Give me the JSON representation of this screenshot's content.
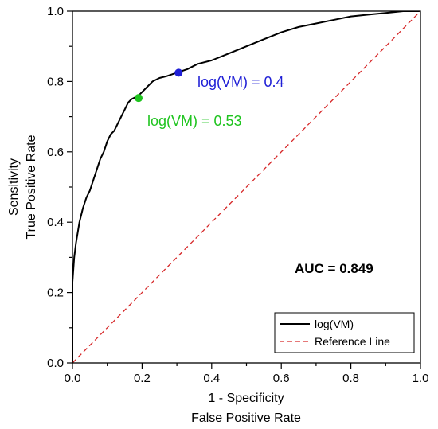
{
  "chart_data": {
    "type": "line",
    "title": "",
    "xlabel_lines": [
      "1 - Specificity",
      "False Positive Rate"
    ],
    "ylabel_lines": [
      "Sensitivity",
      "True Positive Rate"
    ],
    "xlim": [
      0,
      1
    ],
    "ylim": [
      0,
      1
    ],
    "xticks": [
      0.0,
      0.2,
      0.4,
      0.6,
      0.8,
      1.0
    ],
    "yticks": [
      0.0,
      0.2,
      0.4,
      0.6,
      0.8,
      1.0
    ],
    "xtick_labels": [
      "0.0",
      "0.2",
      "0.4",
      "0.6",
      "0.8",
      "1.0"
    ],
    "ytick_labels": [
      "0.0",
      "0.2",
      "0.4",
      "0.6",
      "0.8",
      "1.0"
    ],
    "grid": false,
    "legend_position": "bottom-right",
    "series": [
      {
        "name": "log(VM)",
        "color": "#000000",
        "style": "solid",
        "x": [
          0.0,
          0.0,
          0.005,
          0.01,
          0.015,
          0.02,
          0.03,
          0.04,
          0.05,
          0.06,
          0.07,
          0.08,
          0.09,
          0.1,
          0.11,
          0.12,
          0.13,
          0.14,
          0.15,
          0.16,
          0.17,
          0.19,
          0.21,
          0.23,
          0.25,
          0.27,
          0.3,
          0.33,
          0.36,
          0.4,
          0.45,
          0.5,
          0.55,
          0.6,
          0.65,
          0.7,
          0.75,
          0.8,
          0.85,
          0.9,
          0.95,
          1.0
        ],
        "y": [
          0.0,
          0.23,
          0.3,
          0.34,
          0.37,
          0.4,
          0.44,
          0.47,
          0.49,
          0.52,
          0.55,
          0.58,
          0.6,
          0.63,
          0.65,
          0.66,
          0.68,
          0.7,
          0.72,
          0.74,
          0.75,
          0.76,
          0.78,
          0.8,
          0.81,
          0.815,
          0.825,
          0.835,
          0.85,
          0.86,
          0.88,
          0.9,
          0.92,
          0.94,
          0.955,
          0.965,
          0.975,
          0.985,
          0.99,
          0.995,
          1.0,
          1.0
        ]
      },
      {
        "name": "Reference Line",
        "color": "#d62728",
        "style": "dashed",
        "x": [
          0,
          1
        ],
        "y": [
          0,
          1
        ]
      }
    ],
    "markers": [
      {
        "x": 0.305,
        "y": 0.825,
        "color": "#1f1fd6",
        "label": "log(VM) = 0.4"
      },
      {
        "x": 0.19,
        "y": 0.753,
        "color": "#1fc41f",
        "label": "log(VM) = 0.53"
      }
    ],
    "annotations": [
      {
        "text": "AUC = 0.849"
      }
    ]
  }
}
